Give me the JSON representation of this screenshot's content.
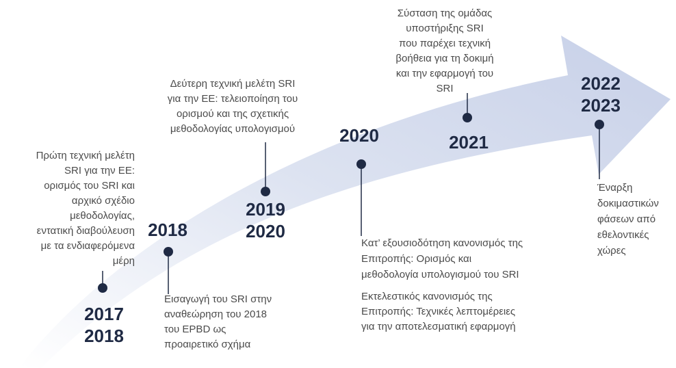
{
  "milestones": [
    {
      "year": [
        "2017",
        "2018"
      ],
      "text": [
        "Πρώτη τεχνική μελέτη",
        "SRI για την ΕΕ:",
        "ορισμός του SRI και",
        "αρχικό σχέδιο",
        "μεθοδολογίας,",
        "εντατική διαβούλευση",
        "με τα ενδιαφερόμενα",
        "μέρη"
      ]
    },
    {
      "year": [
        "2018"
      ],
      "text": [
        "Εισαγωγή του SRI στην",
        "αναθεώρηση του 2018",
        "του EPBD ως",
        "προαιρετικό σχήμα"
      ]
    },
    {
      "year": [
        "2019",
        "2020"
      ],
      "text": [
        "Δεύτερη τεχνική μελέτη SRI",
        "για την ΕΕ: τελειοποίηση του",
        "ορισμού και της σχετικής",
        "μεθοδολογίας υπολογισμού"
      ]
    },
    {
      "year": [
        "2020"
      ],
      "text": [
        "Κατ’ εξουσιοδότηση κανονισμός της",
        "Επιτροπής: Ορισμός και",
        "μεθοδολογία υπολογισμού του SRI",
        "Εκτελεστικός κανονισμός της",
        "Επιτροπής: Τεχνικές λεπτομέρειες",
        "για την αποτελεσματική εφαρμογή"
      ]
    },
    {
      "year": [
        "2021"
      ],
      "text": [
        "Σύσταση της ομάδας",
        "υποστήριξης SRI",
        "που παρέχει τεχνική",
        "βοήθεια για τη δοκιμή",
        "και την εφαρμογή του",
        "SRI"
      ]
    },
    {
      "year": [
        "2022",
        "2023"
      ],
      "text": [
        "Έναρξη",
        "δοκιμαστικών",
        "φάσεων από",
        "εθελοντικές",
        "χώρες"
      ]
    }
  ]
}
